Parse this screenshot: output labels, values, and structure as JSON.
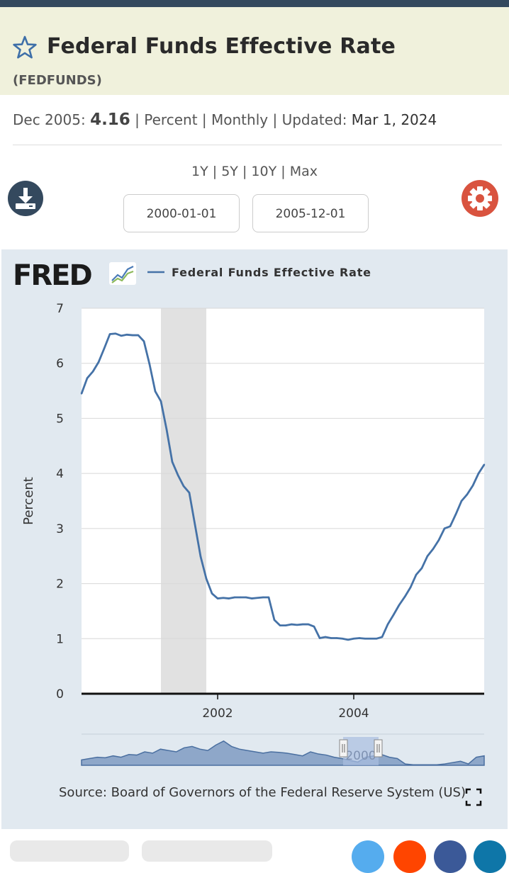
{
  "header": {
    "title": "Federal Funds Effective Rate",
    "series_id": "(FEDFUNDS)"
  },
  "meta": {
    "obs_date": "Dec 2005:",
    "obs_value": "4.16",
    "units": "Percent",
    "frequency": "Monthly",
    "updated_label": "Updated:",
    "updated_date": "Mar 1, 2024"
  },
  "range_links": [
    "1Y",
    "5Y",
    "10Y",
    "Max"
  ],
  "inputs": {
    "start_date": "2000-01-01",
    "end_date": "2005-12-01"
  },
  "logo": {
    "text": "FRED"
  },
  "colors": {
    "line": "#4572a7",
    "recession": "#e1e1e1",
    "panel": "#e1e9f0",
    "title_band": "#f0f1dc",
    "gear": "#d9533f",
    "download": "#34495e"
  },
  "icons": {
    "favorite": "star-icon",
    "download": "download-icon",
    "settings": "gear-icon",
    "fullscreen": "expand-icon"
  },
  "source": "Source: Board of Governors of the Federal Reserve System (US)",
  "navigator_label": "2000",
  "chart_data": {
    "type": "line",
    "title": "",
    "legend": "Federal Funds Effective Rate",
    "ylabel": "Percent",
    "xlabel": "",
    "ylim": [
      0,
      7
    ],
    "yticks": [
      0,
      1,
      2,
      3,
      4,
      5,
      6,
      7
    ],
    "xlim": [
      "2000-01",
      "2005-12"
    ],
    "xticks": [
      "2002",
      "2004"
    ],
    "grid": true,
    "recession": {
      "start": "2001-03",
      "end": "2001-11"
    },
    "series": [
      {
        "name": "Federal Funds Effective Rate",
        "x": [
          "2000-01",
          "2000-02",
          "2000-03",
          "2000-04",
          "2000-05",
          "2000-06",
          "2000-07",
          "2000-08",
          "2000-09",
          "2000-10",
          "2000-11",
          "2000-12",
          "2001-01",
          "2001-02",
          "2001-03",
          "2001-04",
          "2001-05",
          "2001-06",
          "2001-07",
          "2001-08",
          "2001-09",
          "2001-10",
          "2001-11",
          "2001-12",
          "2002-01",
          "2002-02",
          "2002-03",
          "2002-04",
          "2002-05",
          "2002-06",
          "2002-07",
          "2002-08",
          "2002-09",
          "2002-10",
          "2002-11",
          "2002-12",
          "2003-01",
          "2003-02",
          "2003-03",
          "2003-04",
          "2003-05",
          "2003-06",
          "2003-07",
          "2003-08",
          "2003-09",
          "2003-10",
          "2003-11",
          "2003-12",
          "2004-01",
          "2004-02",
          "2004-03",
          "2004-04",
          "2004-05",
          "2004-06",
          "2004-07",
          "2004-08",
          "2004-09",
          "2004-10",
          "2004-11",
          "2004-12",
          "2005-01",
          "2005-02",
          "2005-03",
          "2005-04",
          "2005-05",
          "2005-06",
          "2005-07",
          "2005-08",
          "2005-09",
          "2005-10",
          "2005-11",
          "2005-12"
        ],
        "values": [
          5.45,
          5.73,
          5.85,
          6.02,
          6.27,
          6.53,
          6.54,
          6.5,
          6.52,
          6.51,
          6.51,
          6.4,
          5.98,
          5.49,
          5.31,
          4.8,
          4.21,
          3.97,
          3.77,
          3.65,
          3.07,
          2.49,
          2.09,
          1.82,
          1.73,
          1.74,
          1.73,
          1.75,
          1.75,
          1.75,
          1.73,
          1.74,
          1.75,
          1.75,
          1.34,
          1.24,
          1.24,
          1.26,
          1.25,
          1.26,
          1.26,
          1.22,
          1.01,
          1.03,
          1.01,
          1.01,
          1.0,
          0.98,
          1.0,
          1.01,
          1.0,
          1.0,
          1.0,
          1.03,
          1.26,
          1.43,
          1.61,
          1.76,
          1.93,
          2.16,
          2.28,
          2.5,
          2.63,
          2.79,
          3.0,
          3.04,
          3.26,
          3.5,
          3.62,
          3.78,
          4.0,
          4.16
        ]
      }
    ]
  }
}
